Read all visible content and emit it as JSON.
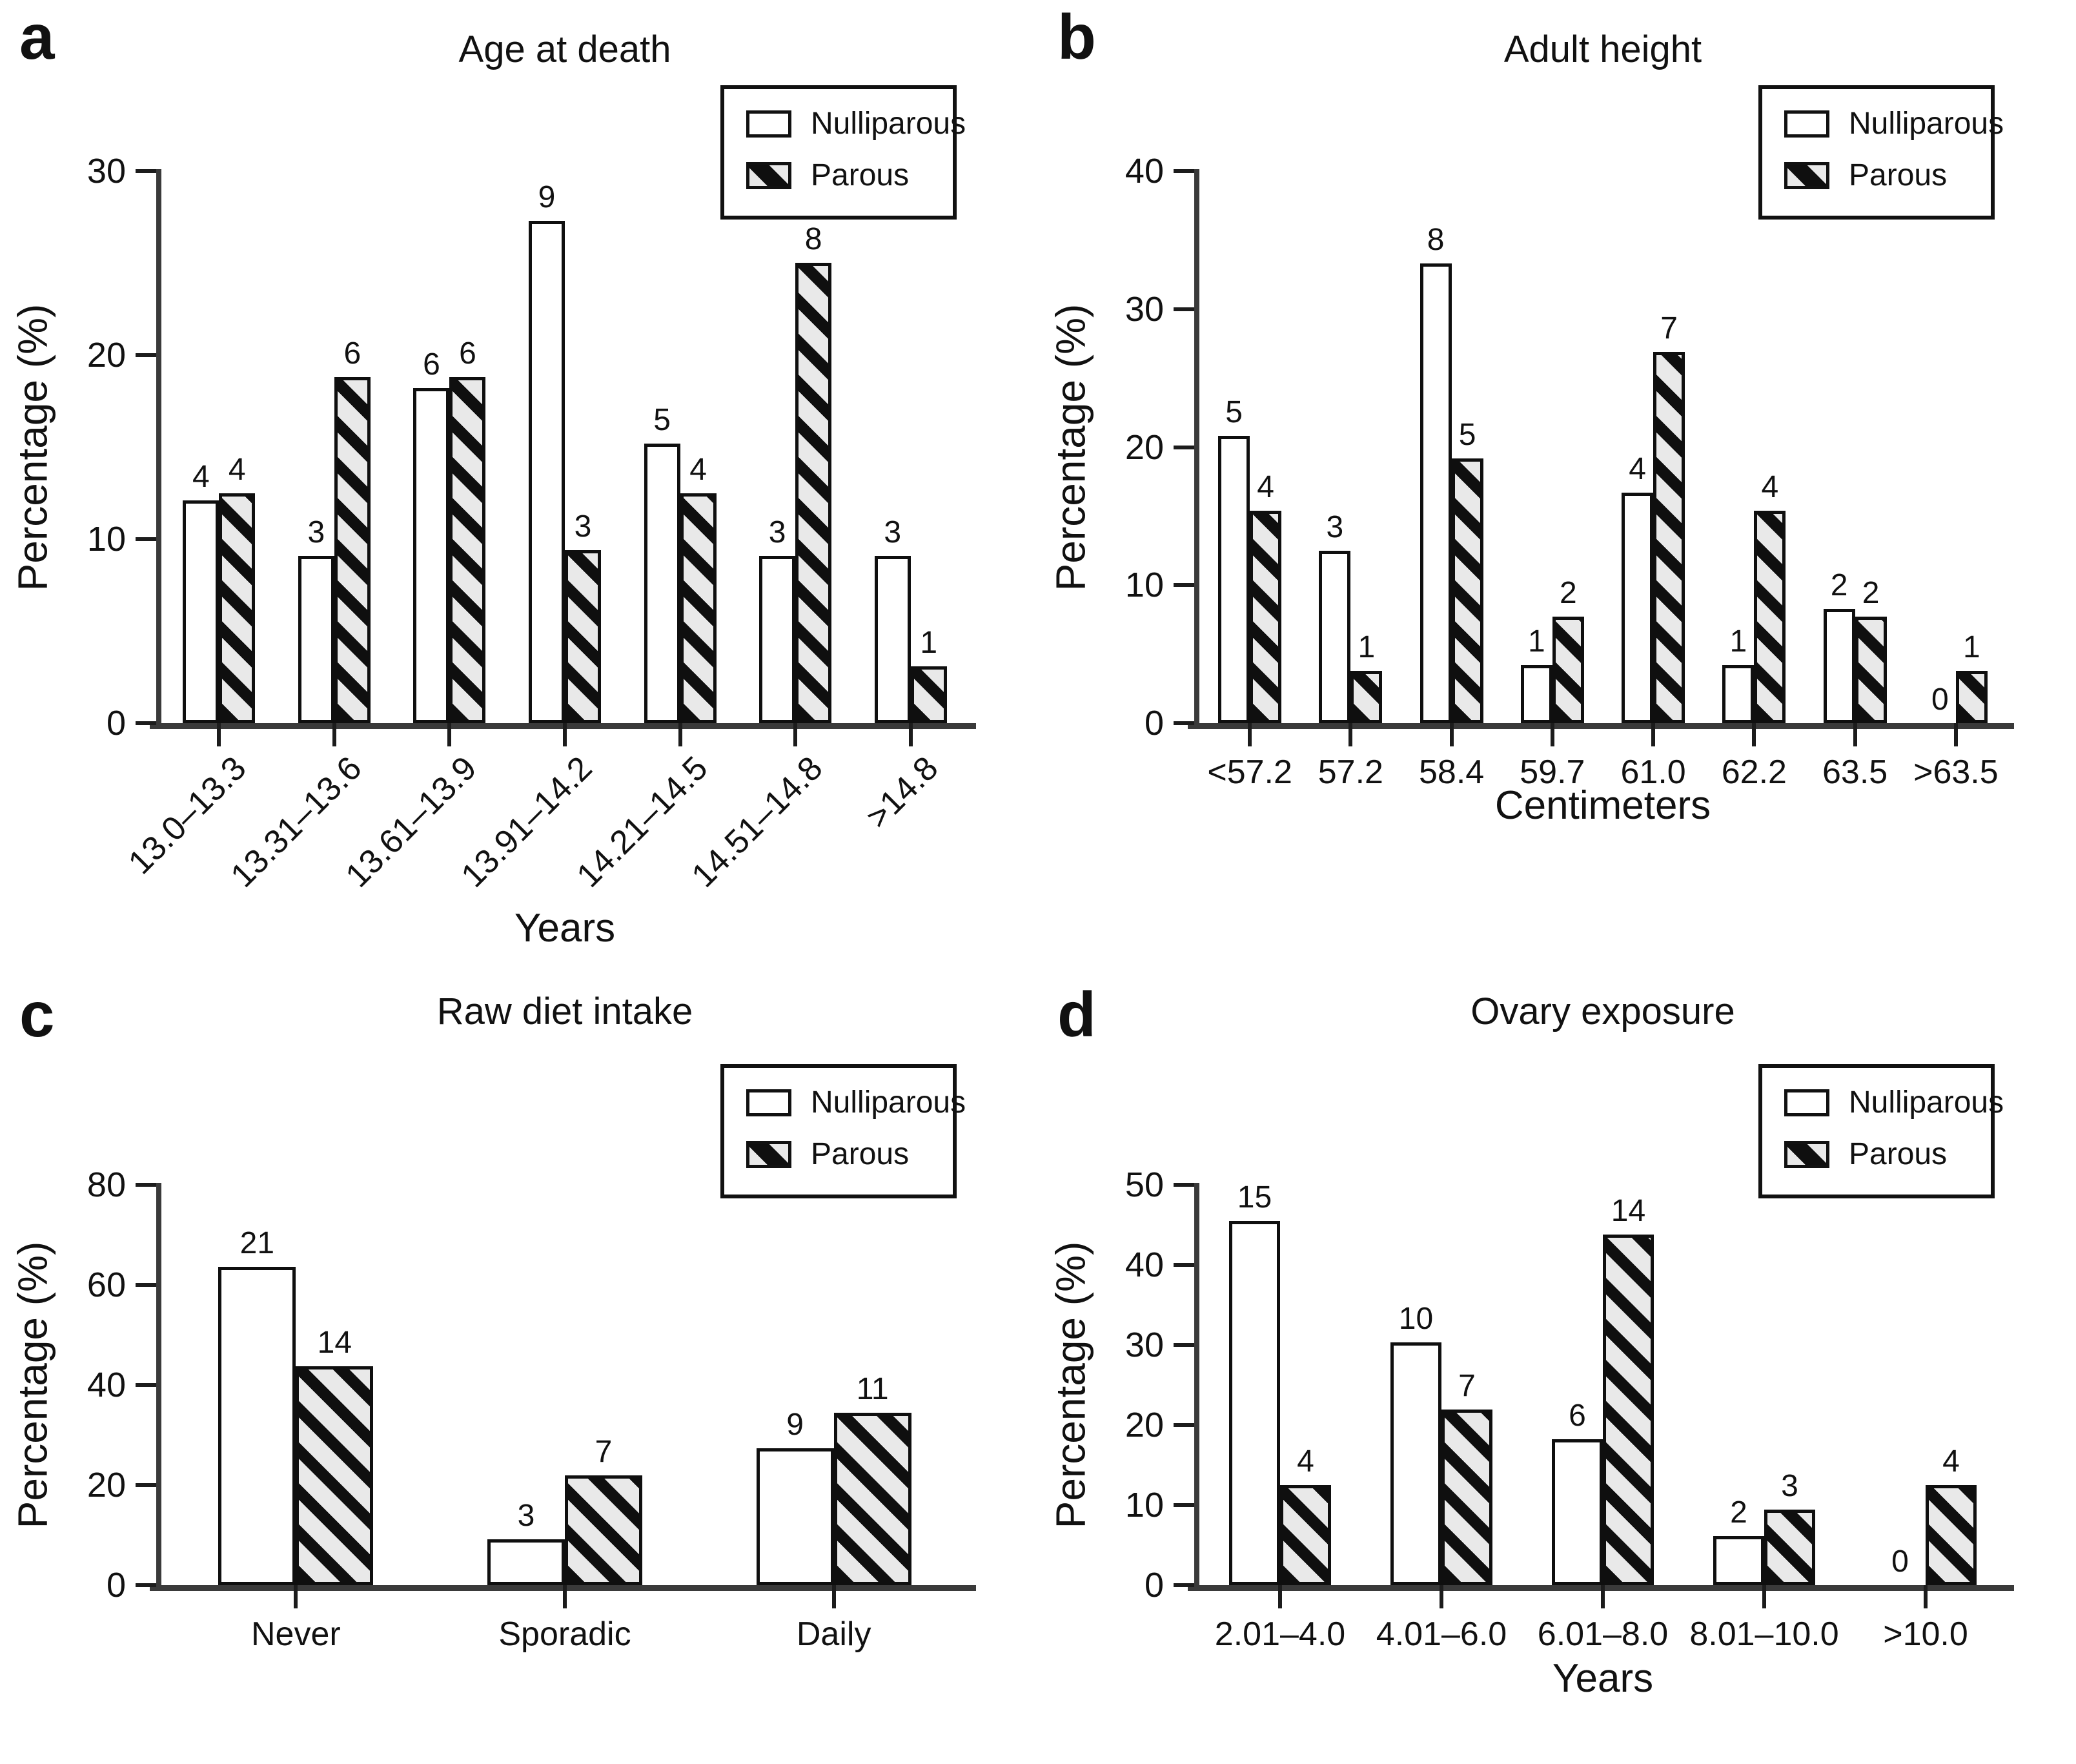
{
  "legend": {
    "items": [
      {
        "label": "Nulliparous",
        "swatch": "white"
      },
      {
        "label": "Parous",
        "swatch": "hatched-diagonal"
      }
    ]
  },
  "colors": {
    "background": "#ffffff",
    "text": "#111111",
    "axis": "#3a3a3a",
    "bar_border": "#0f0f0f",
    "nulliparous_fill": "#ffffff",
    "parous_fill_bg": "#e9e9e9",
    "parous_hatch_stripe": "#0f0f0f"
  },
  "chart_data": [
    {
      "type": "bar",
      "panel_letter": "a",
      "title": "Age at death",
      "xlabel": "Years",
      "ylabel": "Percentage (%)",
      "ylim": [
        0,
        30
      ],
      "yticks": [
        0,
        10,
        20,
        30
      ],
      "grid": false,
      "legend_position": "top-right",
      "rotated_xticklabels": true,
      "categories": [
        "13.0–13.3",
        "13.31–13.6",
        "13.61–13.9",
        "13.91–14.2",
        "14.21–14.5",
        "14.51–14.8",
        ">14.8"
      ],
      "series": [
        {
          "name": "Nulliparous",
          "counts": [
            4,
            3,
            6,
            9,
            5,
            3,
            3
          ],
          "values_pct": [
            12.1,
            9.1,
            18.2,
            27.3,
            15.2,
            9.1,
            9.1
          ]
        },
        {
          "name": "Parous",
          "counts": [
            4,
            6,
            6,
            3,
            4,
            8,
            1
          ],
          "values_pct": [
            12.5,
            18.8,
            18.8,
            9.4,
            12.5,
            25.0,
            3.1
          ]
        }
      ],
      "bar_labels": "counts"
    },
    {
      "type": "bar",
      "panel_letter": "b",
      "title": "Adult height",
      "xlabel": "Centimeters",
      "ylabel": "Percentage (%)",
      "ylim": [
        0,
        40
      ],
      "yticks": [
        0,
        10,
        20,
        30,
        40
      ],
      "grid": false,
      "legend_position": "top-right",
      "rotated_xticklabels": false,
      "categories": [
        "<57.2",
        "57.2",
        "58.4",
        "59.7",
        "61.0",
        "62.2",
        "63.5",
        ">63.5"
      ],
      "series": [
        {
          "name": "Nulliparous",
          "counts": [
            5,
            3,
            8,
            1,
            4,
            1,
            2,
            0
          ],
          "values_pct": [
            20.8,
            12.5,
            33.3,
            4.2,
            16.7,
            4.2,
            8.3,
            0
          ]
        },
        {
          "name": "Parous",
          "counts": [
            4,
            1,
            5,
            2,
            7,
            4,
            2,
            1
          ],
          "values_pct": [
            15.4,
            3.8,
            19.2,
            7.7,
            26.9,
            15.4,
            7.7,
            3.8
          ]
        }
      ],
      "bar_labels": "counts"
    },
    {
      "type": "bar",
      "panel_letter": "c",
      "title": "Raw diet intake",
      "xlabel": "",
      "ylabel": "Percentage (%)",
      "ylim": [
        0,
        80
      ],
      "yticks": [
        0,
        20,
        40,
        60,
        80
      ],
      "grid": false,
      "legend_position": "top-right",
      "rotated_xticklabels": false,
      "categories": [
        "Never",
        "Sporadic",
        "Daily"
      ],
      "series": [
        {
          "name": "Nulliparous",
          "counts": [
            21,
            3,
            9
          ],
          "values_pct": [
            63.6,
            9.1,
            27.3
          ]
        },
        {
          "name": "Parous",
          "counts": [
            14,
            7,
            11
          ],
          "values_pct": [
            43.8,
            21.9,
            34.4
          ]
        }
      ],
      "bar_labels": "counts"
    },
    {
      "type": "bar",
      "panel_letter": "d",
      "title": "Ovary exposure",
      "xlabel": "Years",
      "ylabel": "Percentage (%)",
      "ylim": [
        0,
        50
      ],
      "yticks": [
        0,
        10,
        20,
        30,
        40,
        50
      ],
      "grid": false,
      "legend_position": "top-right",
      "rotated_xticklabels": false,
      "categories": [
        "2.01–4.0",
        "4.01–6.0",
        "6.01–8.0",
        "8.01–10.0",
        ">10.0"
      ],
      "series": [
        {
          "name": "Nulliparous",
          "counts": [
            15,
            10,
            6,
            2,
            0
          ],
          "values_pct": [
            45.5,
            30.3,
            18.2,
            6.1,
            0
          ]
        },
        {
          "name": "Parous",
          "counts": [
            4,
            7,
            14,
            3,
            4
          ],
          "values_pct": [
            12.5,
            21.9,
            43.8,
            9.4,
            12.5
          ]
        }
      ],
      "bar_labels": "counts"
    }
  ]
}
